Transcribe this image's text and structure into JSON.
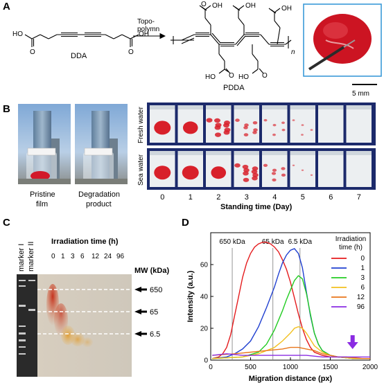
{
  "panels": {
    "a": {
      "letter": "A",
      "monomer_label": "DDA",
      "arrow_label_line1": "Topo-",
      "arrow_label_line2": "polymn",
      "polymer_label": "PDDA",
      "repeat_n": "n",
      "cooh": "OH",
      "ho": "HO",
      "o": "O",
      "scale_bar": "5 mm"
    },
    "b": {
      "letter": "B",
      "photo1_caption_line1": "Pristine",
      "photo1_caption_line2": "film",
      "photo2_caption_line1": "Degradation",
      "photo2_caption_line2": "product",
      "row1_label": "Fresh water",
      "row2_label": "Sea water",
      "days": [
        "0",
        "1",
        "2",
        "3",
        "4",
        "5",
        "6",
        "7"
      ],
      "xaxis_label": "Standing time (Day)",
      "colors": {
        "film": "#d8202a",
        "frame": "#1c2a6b"
      }
    },
    "c": {
      "letter": "C",
      "marker1": "marker I",
      "marker2": "marker II",
      "irradiation_title": "Irradiation time (h)",
      "times": [
        "0",
        "1",
        "3",
        "6",
        "12",
        "24",
        "96"
      ],
      "mw_title": "MW (kDa)",
      "mw_markers": [
        "650",
        "65",
        "6.5"
      ]
    },
    "d": {
      "letter": "D",
      "chart_data": {
        "type": "line",
        "xlabel": "Migration distance (px)",
        "ylabel": "Intensity (a.u.)",
        "xlim": [
          0,
          2000
        ],
        "ylim": [
          0,
          80
        ],
        "xticks": [
          0,
          500,
          1000,
          1500,
          2000
        ],
        "yticks": [
          0,
          20,
          40,
          60
        ],
        "grid": false,
        "legend_title_line1": "Irradiation",
        "legend_title_line2": "time (h)",
        "legend_position": "right",
        "markers": [
          {
            "label": "650 kDa",
            "x": 270
          },
          {
            "label": "65 kDa",
            "x": 780
          },
          {
            "label": "6.5 kDa",
            "x": 1120
          }
        ],
        "arrow_x": 1780,
        "series": [
          {
            "name": "0",
            "color": "#e41a1c",
            "x": [
              20,
              100,
              150,
              200,
              250,
              300,
              350,
              400,
              450,
              500,
              550,
              600,
              650,
              700,
              750,
              800,
              850,
              900,
              950,
              1000,
              1050,
              1100,
              1150,
              1200,
              1250,
              1300,
              1400,
              1500,
              1600,
              1700,
              1800,
              1900,
              2000
            ],
            "y": [
              1,
              2,
              4,
              8,
              16,
              28,
              40,
              52,
              61,
              67,
              71,
              73,
              74,
              74,
              73,
              71,
              68,
              63,
              57,
              49,
              39,
              29,
              20,
              13,
              8,
              5,
              3,
              2,
              2,
              1.5,
              1,
              1,
              1
            ]
          },
          {
            "name": "1",
            "color": "#1f3fd0",
            "x": [
              20,
              200,
              300,
              400,
              500,
              600,
              700,
              800,
              850,
              900,
              950,
              1000,
              1050,
              1100,
              1150,
              1200,
              1250,
              1300,
              1350,
              1400,
              1500,
              1600,
              1700,
              1800,
              1900,
              2000
            ],
            "y": [
              1,
              2,
              4,
              7,
              12,
              21,
              33,
              46,
              54,
              61,
              66,
              69,
              70,
              67,
              58,
              43,
              28,
              17,
              10,
              6,
              3,
              2,
              1.5,
              1,
              1,
              1
            ]
          },
          {
            "name": "3",
            "color": "#22cc22",
            "x": [
              20,
              400,
              600,
              700,
              800,
              900,
              950,
              1000,
              1050,
              1100,
              1150,
              1200,
              1250,
              1300,
              1350,
              1400,
              1500,
              1600,
              1700,
              1800,
              1900,
              2000
            ],
            "y": [
              1,
              2,
              5,
              10,
              19,
              31,
              38,
              44,
              50,
              53,
              51,
              42,
              29,
              17,
              10,
              6,
              3,
              2,
              1.5,
              1,
              1,
              1
            ]
          },
          {
            "name": "6",
            "color": "#f2c01e",
            "x": [
              20,
              400,
              600,
              800,
              900,
              1000,
              1050,
              1100,
              1150,
              1200,
              1250,
              1300,
              1400,
              1500,
              1600,
              1700,
              1800,
              1900,
              2000
            ],
            "y": [
              1,
              2,
              4,
              8,
              12,
              17,
              20,
              21,
              20,
              17,
              13,
              9,
              5,
              3,
              2,
              1.5,
              1,
              1,
              1
            ]
          },
          {
            "name": "12",
            "color": "#e8751a",
            "x": [
              20,
              300,
              500,
              700,
              900,
              1000,
              1100,
              1200,
              1300,
              1400,
              1500,
              1600,
              1700,
              1800,
              1900,
              2000
            ],
            "y": [
              3,
              4,
              5,
              6,
              7,
              8,
              8,
              7,
              6,
              4,
              3,
              2,
              2,
              1.5,
              1,
              1
            ]
          },
          {
            "name": "96",
            "color": "#8a2be2",
            "x": [
              20,
              200,
              400,
              600,
              800,
              1000,
              1200,
              1400,
              1600,
              1800,
              2000
            ],
            "y": [
              3,
              4,
              3,
              3,
              3,
              3,
              3,
              2,
              2,
              2,
              2
            ]
          }
        ]
      }
    }
  }
}
